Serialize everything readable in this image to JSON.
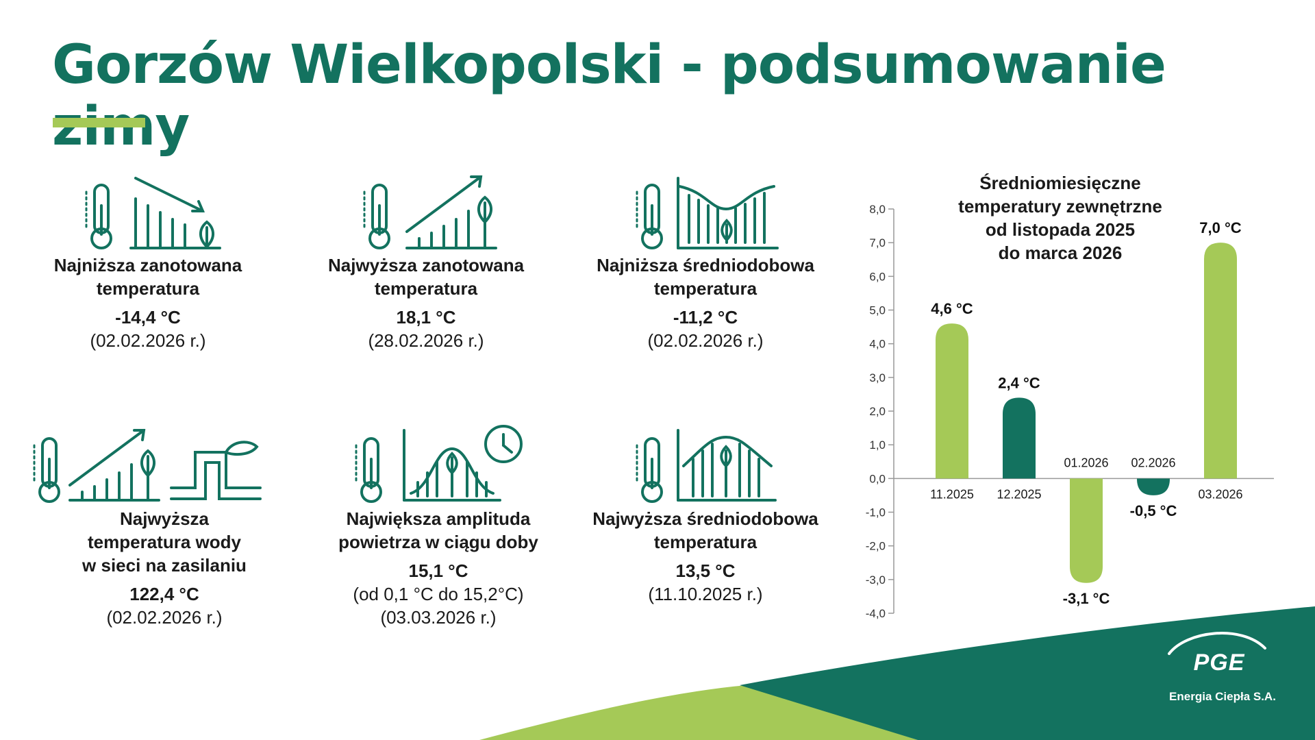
{
  "title": "Gorzów Wielkopolski - podsumowanie zimy",
  "stats": [
    {
      "label_l1": "Najniższa zanotowana",
      "label_l2": "temperatura",
      "label_l3": "",
      "value": "-14,4 °C",
      "sub1": "(02.02.2026 r.)",
      "sub2": "",
      "icon": "thermometer-falling-bars-icon"
    },
    {
      "label_l1": "Najwyższa zanotowana",
      "label_l2": "temperatura",
      "label_l3": "",
      "value": "18,1 °C",
      "sub1": "(28.02.2026 r.)",
      "sub2": "",
      "icon": "thermometer-rising-bars-icon"
    },
    {
      "label_l1": "Najniższa średniodobowa",
      "label_l2": "temperatura",
      "label_l3": "",
      "value": "-11,2 °C",
      "sub1": "(02.02.2026 r.)",
      "sub2": "",
      "icon": "thermometer-valley-curve-icon"
    },
    {
      "label_l1": "Najwyższa",
      "label_l2": "temperatura wody",
      "label_l3": "w sieci na zasilaniu",
      "value": "122,4 °C",
      "sub1": "(02.02.2026 r.)",
      "sub2": "",
      "icon": "thermometer-pipe-icon"
    },
    {
      "label_l1": "Największa amplituda",
      "label_l2": "powietrza w ciągu doby",
      "label_l3": "",
      "value": "15,1 °C",
      "sub1": "(od 0,1 °C do 15,2°C)",
      "sub2": "(03.03.2026 r.)",
      "icon": "thermometer-clock-curve-icon"
    },
    {
      "label_l1": "Najwyższa średniodobowa",
      "label_l2": "temperatura",
      "label_l3": "",
      "value": "13,5 °C",
      "sub1": "(11.10.2025 r.)",
      "sub2": "",
      "icon": "thermometer-peak-curve-icon"
    }
  ],
  "chart_title_lines": [
    "Średniomiesięczne",
    "temperatury zewnętrzne",
    "od listopada 2025",
    "do marca 2026"
  ],
  "chart_data": {
    "type": "bar",
    "title": "Średniomiesięczne temperatury zewnętrzne od listopada 2025 do marca 2026",
    "categories": [
      "11.2025",
      "12.2025",
      "01.2026",
      "02.2026",
      "03.2026"
    ],
    "values": [
      4.6,
      2.4,
      -3.1,
      -0.5,
      7.0
    ],
    "data_labels": [
      "4,6 °C",
      "2,4 °C",
      "-3,1 °C",
      "-0,5 °C",
      "7,0 °C"
    ],
    "bar_colors": [
      "#a5c957",
      "#13725f",
      "#a5c957",
      "#13725f",
      "#a5c957"
    ],
    "ylim": [
      -4,
      8
    ],
    "yticks": [
      "-4,0",
      "-3,0",
      "-2,0",
      "-1,0",
      "0,0",
      "1,0",
      "2,0",
      "3,0",
      "4,0",
      "5,0",
      "6,0",
      "7,0",
      "8,0"
    ],
    "xlabel": "",
    "ylabel": "",
    "grid": false
  },
  "colors": {
    "accent": "#a5c957",
    "brand": "#13725f"
  },
  "logo": {
    "brand": "PGE",
    "company": "Energia Ciepła S.A."
  }
}
